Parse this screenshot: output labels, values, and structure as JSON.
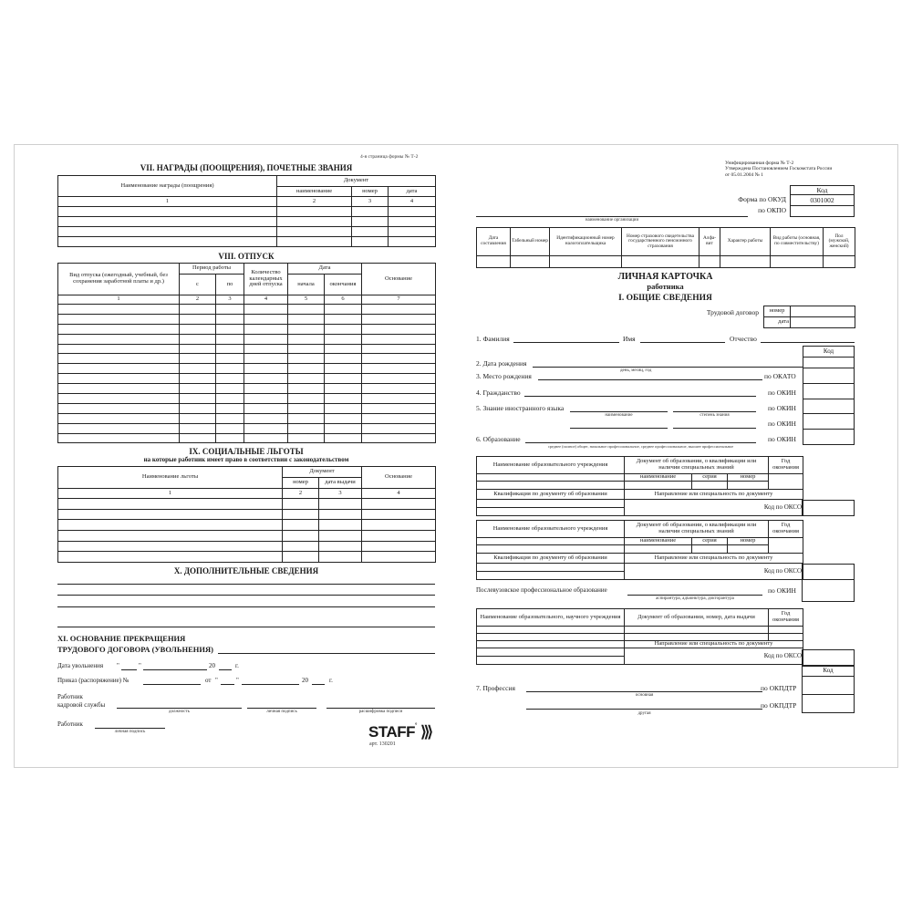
{
  "left_page": {
    "page_note": "4-я страница формы № Т-2",
    "awards": {
      "title": "VII. НАГРАДЫ (ПООЩРЕНИЯ), ПОЧЕТНЫЕ ЗВАНИЯ",
      "col_name": "Наименование награды (поощрения)",
      "col_doc": "Документ",
      "sub": [
        "наименование",
        "номер",
        "дата"
      ],
      "nums": [
        "1",
        "2",
        "3",
        "4"
      ]
    },
    "vacation": {
      "title": "VIII. ОТПУСК",
      "col_type": "Вид отпуска (ежегодный, учебный, без сохранения заработной платы и др.)",
      "col_period": "Период работы",
      "from": "с",
      "to": "по",
      "col_days": "Количество календарных дней отпуска",
      "col_date": "Дата",
      "start": "начала",
      "end": "окончания",
      "col_basis": "Основание",
      "nums": [
        "1",
        "2",
        "3",
        "4",
        "5",
        "6",
        "7"
      ]
    },
    "benefits": {
      "title": "IX. СОЦИАЛЬНЫЕ ЛЬГОТЫ",
      "subtitle": "на которые работник имеет право в соответствии с законодательством",
      "col_name": "Наименование льготы",
      "col_doc": "Документ",
      "sub": [
        "номер",
        "дата выдачи"
      ],
      "col_basis": "Основание",
      "nums": [
        "1",
        "2",
        "3",
        "4"
      ]
    },
    "additional": {
      "title": "X. ДОПОЛНИТЕЛЬНЫЕ СВЕДЕНИЯ"
    },
    "termination": {
      "title1": "XI. ОСНОВАНИЕ ПРЕКРАЩЕНИЯ",
      "title2": "ТРУДОВОГО ДОГОВОРА (УВОЛЬНЕНИЯ)",
      "date_label": "Дата увольнения",
      "quote": "\"",
      "year20": "20",
      "g": "г.",
      "order_label": "Приказ (распоряжение) №",
      "ot": "от",
      "hr1": "Работник",
      "hr2": "кадровой службы",
      "cap_position": "должность",
      "cap_signature": "личная подпись",
      "cap_decoding": "расшифровка подписи",
      "worker": "Работник",
      "cap_worker_sig": "личная подпись"
    },
    "brand": {
      "logo": "STAFF",
      "article": "арт. 130201"
    }
  },
  "right_page": {
    "header_note": [
      "Унифицированная форма № Т-2",
      "Утверждена Постановлением Госкомстата России",
      "от 05.01.2004 № 1"
    ],
    "code_header": "Код",
    "okud_label": "Форма по ОКУД",
    "okud_value": "0301002",
    "okpo_label": "по ОКПО",
    "org_caption": "наименование организации",
    "info_cols": [
      "Дата составления",
      "Табельный номер",
      "Идентификационный номер налогоплательщика",
      "Номер страхового свидетельства государственного пенсионного страхования",
      "Алфа-вит",
      "Характер работы",
      "Вид работы (основная, по совместительству)",
      "Пол (мужской, женский)"
    ],
    "card_title": "ЛИЧНАЯ КАРТОЧКА",
    "card_subtitle": "работника",
    "section1": "I. ОБЩИЕ СВЕДЕНИЯ",
    "contract_label": "Трудовой договор",
    "contract_number": "номер",
    "contract_date": "дата",
    "surname": "1. Фамилия",
    "name": "Имя",
    "patronymic": "Отчество",
    "birth_date": "2. Дата рождения",
    "birth_caption": "день, месяц, год",
    "birth_place": "3. Место рождения",
    "okato": "по ОКАТО",
    "citizenship": "4. Гражданство",
    "okin": "по ОКИН",
    "language": "5. Знание иностранного языка",
    "lang_cap1": "наименование",
    "lang_cap2": "степень знания",
    "education": "6. Образование",
    "education_caption": "среднее (полное) общее, начальное профессиональное, среднее профессиональное, высшее профессиональное",
    "edu_table": {
      "institution": "Наименование образовательного учреждения",
      "document": "Документ об образовании, о квалификации или наличии специальных знаний",
      "year": "Год окончания",
      "sub": [
        "наименование",
        "серия",
        "номер"
      ],
      "qualification": "Квалификация по документу об образовании",
      "direction": "Направление или специальность по документу",
      "okso": "Код по ОКСО"
    },
    "postgrad": "Послевузовское профессиональное образование",
    "postgrad_caption": "аспирантура, адъюнктура, докторантура",
    "post_table": {
      "institution": "Наименование образовательного, научного учреждения",
      "document": "Документ об образовании, номер, дата выдачи",
      "year": "Год окончания"
    },
    "profession": "7. Профессия",
    "prof_cap1": "основная",
    "prof_cap2": "другая",
    "okpdtr": "по ОКПДТР"
  }
}
